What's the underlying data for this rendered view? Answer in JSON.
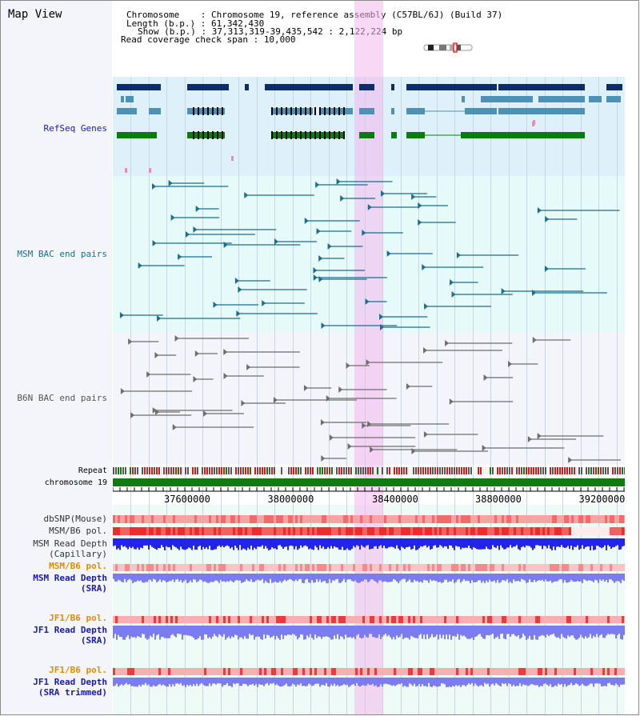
{
  "page_title": "Map View",
  "header": {
    "chromosome_label": "Chromosome    : ",
    "chromosome_value": "Chromosome 19, reference assembly (C57BL/6J) (Build 37)",
    "length_label": "Length (b.p.) : ",
    "length_value": "61,342,430",
    "show_label": "Show (b.p.) : ",
    "show_value": "37,313,319-39,435,542 : 2,122,224 bp",
    "coverage_label": "Read coverage check span : ",
    "coverage_value": "10,000"
  },
  "track_labels": {
    "refseq": "RefSeq Genes",
    "msm_bac": "MSM BAC end pairs",
    "b6n_bac": "B6N BAC end pairs",
    "repeat": "Repeat",
    "chromosome": "chromosome 19",
    "dbsnp": "dbSNP(Mouse)",
    "msm_b6_pol": "MSM/B6 pol.",
    "msm_depth_cap_1": "MSM Read Depth",
    "msm_depth_cap_2": "(Capillary)",
    "msm_b6_pol_2": "MSM/B6 pol.",
    "msm_depth_sra_1": "MSM Read Depth",
    "msm_depth_sra_2": "(SRA)",
    "jf1_b6_pol": "JF1/B6 pol.",
    "jf1_depth_sra_1": "JF1 Read Depth",
    "jf1_depth_sra_2": "(SRA)",
    "jf1_b6_pol_2": "JF1/B6 pol.",
    "jf1_depth_trim_1": "JF1 Read Depth",
    "jf1_depth_trim_2": "(SRA trimmed)"
  },
  "ruler": {
    "ticks": [
      "37600000",
      "38000000",
      "38400000",
      "38800000",
      "39200000"
    ]
  },
  "colors": {
    "refseq_bg": "#def0fa",
    "msm_bg": "#e6fafa",
    "b6n_bg": "#f4f4fb",
    "highlight": "#f2b8ec",
    "gene_dark": "#0b2e6b",
    "gene_mid": "#4b92b6",
    "gene_green": "#0d7a10",
    "msm_line": "#1a6e8e",
    "b6n_line": "#6e6e6e",
    "chrom_green": "#117a11",
    "depth_blue": "#2323f0",
    "depth_light": "#7b7bf2",
    "label_blue": "#1a1ab0",
    "label_teal": "#1a6e8e",
    "label_orange": "#e08c00"
  }
}
